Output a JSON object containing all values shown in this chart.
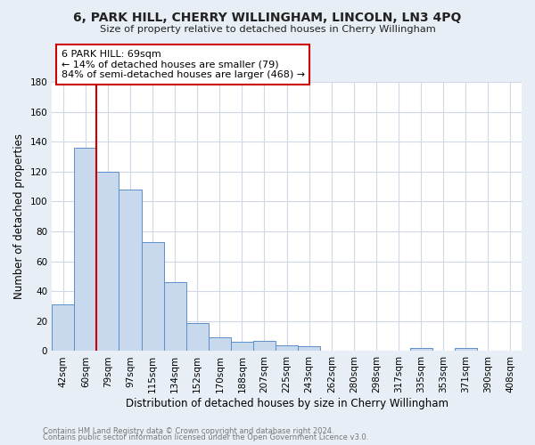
{
  "title": "6, PARK HILL, CHERRY WILLINGHAM, LINCOLN, LN3 4PQ",
  "subtitle": "Size of property relative to detached houses in Cherry Willingham",
  "xlabel": "Distribution of detached houses by size in Cherry Willingham",
  "ylabel": "Number of detached properties",
  "bar_labels": [
    "42sqm",
    "60sqm",
    "79sqm",
    "97sqm",
    "115sqm",
    "134sqm",
    "152sqm",
    "170sqm",
    "188sqm",
    "207sqm",
    "225sqm",
    "243sqm",
    "262sqm",
    "280sqm",
    "298sqm",
    "317sqm",
    "335sqm",
    "353sqm",
    "371sqm",
    "390sqm",
    "408sqm"
  ],
  "bar_heights": [
    31,
    136,
    120,
    108,
    73,
    46,
    19,
    9,
    6,
    7,
    4,
    3,
    0,
    0,
    0,
    0,
    2,
    0,
    2,
    0,
    0
  ],
  "bar_color": "#c9d9ed",
  "bar_edge_color": "#5b8fc9",
  "vline_color": "#cc0000",
  "ylim": [
    0,
    180
  ],
  "yticks": [
    0,
    20,
    40,
    60,
    80,
    100,
    120,
    140,
    160,
    180
  ],
  "annotation_title": "6 PARK HILL: 69sqm",
  "annotation_line1": "← 14% of detached houses are smaller (79)",
  "annotation_line2": "84% of semi-detached houses are larger (468) →",
  "annotation_box_color": "#ffffff",
  "annotation_box_edge_color": "#cc0000",
  "footer_line1": "Contains HM Land Registry data © Crown copyright and database right 2024.",
  "footer_line2": "Contains public sector information licensed under the Open Government Licence v3.0.",
  "fig_bg_color": "#e8eef5",
  "plot_bg_color": "#ffffff",
  "grid_color": "#d0d8e8"
}
